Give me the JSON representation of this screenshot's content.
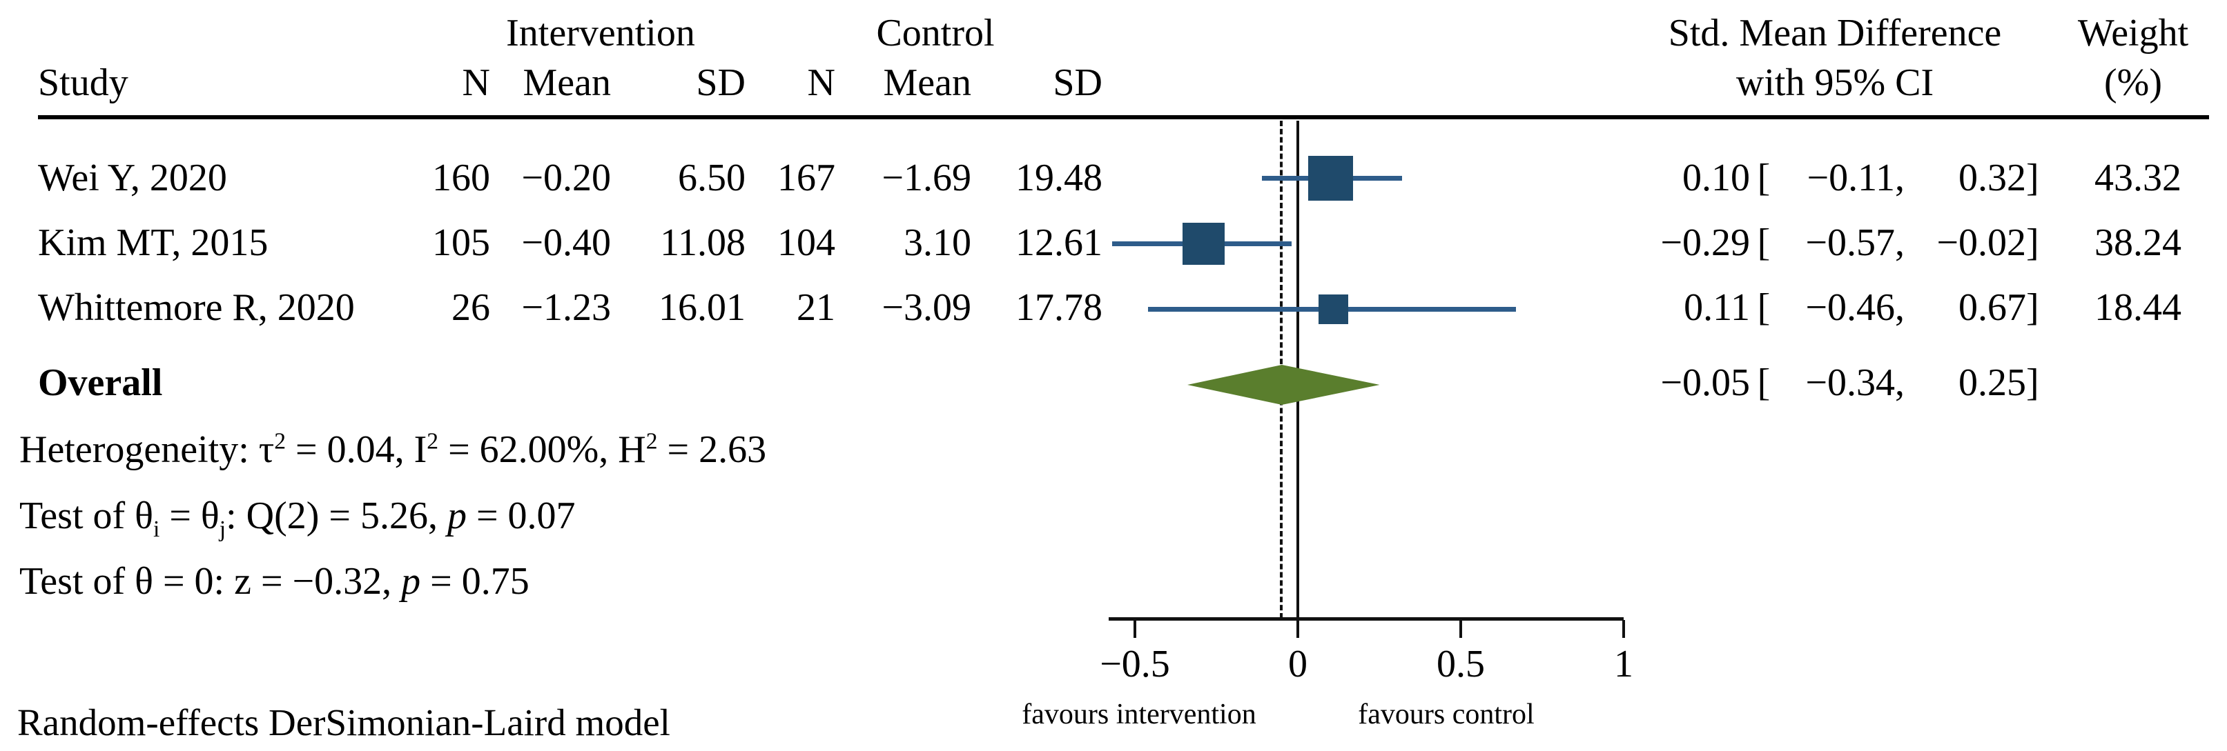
{
  "header": {
    "study": "Study",
    "group_intervention": "Intervention",
    "group_control": "Control",
    "n": "N",
    "mean": "Mean",
    "sd": "SD",
    "smd_line1": "Std. Mean Difference",
    "smd_line2": "with 95% CI",
    "weight_line1": "Weight",
    "weight_line2": "(%)"
  },
  "fmt": {
    "open": "[",
    "comma": ",",
    "close": "]"
  },
  "rows": [
    {
      "study": "Wei Y, 2020",
      "n1": "160",
      "mean1": "−0.20",
      "sd1": "6.50",
      "n2": "167",
      "mean2": "−1.69",
      "sd2": "19.48",
      "est": "0.10",
      "lo": "−0.11",
      "hi": "0.32",
      "weight": "43.32"
    },
    {
      "study": "Kim MT, 2015",
      "n1": "105",
      "mean1": "−0.40",
      "sd1": "11.08",
      "n2": "104",
      "mean2": "3.10",
      "sd2": "12.61",
      "est": "−0.29",
      "lo": "−0.57",
      "hi": "−0.02",
      "weight": "38.24"
    },
    {
      "study": "Whittemore R, 2020",
      "n1": "26",
      "mean1": "−1.23",
      "sd1": "16.01",
      "n2": "21",
      "mean2": "−3.09",
      "sd2": "17.78",
      "est": "0.11",
      "lo": "−0.46",
      "hi": "0.67",
      "weight": "18.44"
    }
  ],
  "overall": {
    "label": "Overall",
    "est": "−0.05",
    "lo": "−0.34",
    "hi": "0.25"
  },
  "stats": {
    "heterogeneity": "Heterogeneity: τ^2 = 0.04, I^2 = 62.00%, H^2 = 2.63",
    "test_q": "Test of θ_i = θ_j: Q(2) = 5.26, *p* = 0.07",
    "test_z": "Test of θ = 0: z = −0.32, *p* = 0.75"
  },
  "footer": {
    "model": "Random-effects DerSimonian-Laird model",
    "favours_left": "favours intervention",
    "favours_right": "favours control"
  },
  "chart_data": {
    "type": "forest",
    "title": "",
    "x_axis": {
      "ticks": [
        -0.5,
        0,
        0.5,
        1
      ],
      "tick_labels": [
        "−0.5",
        "0",
        "0.5",
        "1"
      ],
      "range": [
        -0.58,
        1
      ],
      "zero_line": 0,
      "overall_dashed_line": -0.05,
      "left_label": "favours intervention",
      "right_label": "favours control"
    },
    "studies": [
      {
        "name": "Wei Y, 2020",
        "est": 0.1,
        "lo": -0.11,
        "hi": 0.32,
        "weight": 43.32
      },
      {
        "name": "Kim MT, 2015",
        "est": -0.29,
        "lo": -0.57,
        "hi": -0.02,
        "weight": 38.24
      },
      {
        "name": "Whittemore R, 2020",
        "est": 0.11,
        "lo": -0.46,
        "hi": 0.67,
        "weight": 18.44
      }
    ],
    "overall": {
      "est": -0.05,
      "lo": -0.34,
      "hi": 0.25
    },
    "heterogeneity": {
      "tau2": 0.04,
      "I2_pct": 62.0,
      "H2": 2.63,
      "Q_df": 2,
      "Q": 5.26,
      "p_Q": 0.07,
      "z": -0.32,
      "p_z": 0.75
    },
    "colors": {
      "marker": "#1f4a6b",
      "ci_line": "#2e5c8a",
      "diamond": "#5a7e2d",
      "axis": "#111111"
    }
  }
}
